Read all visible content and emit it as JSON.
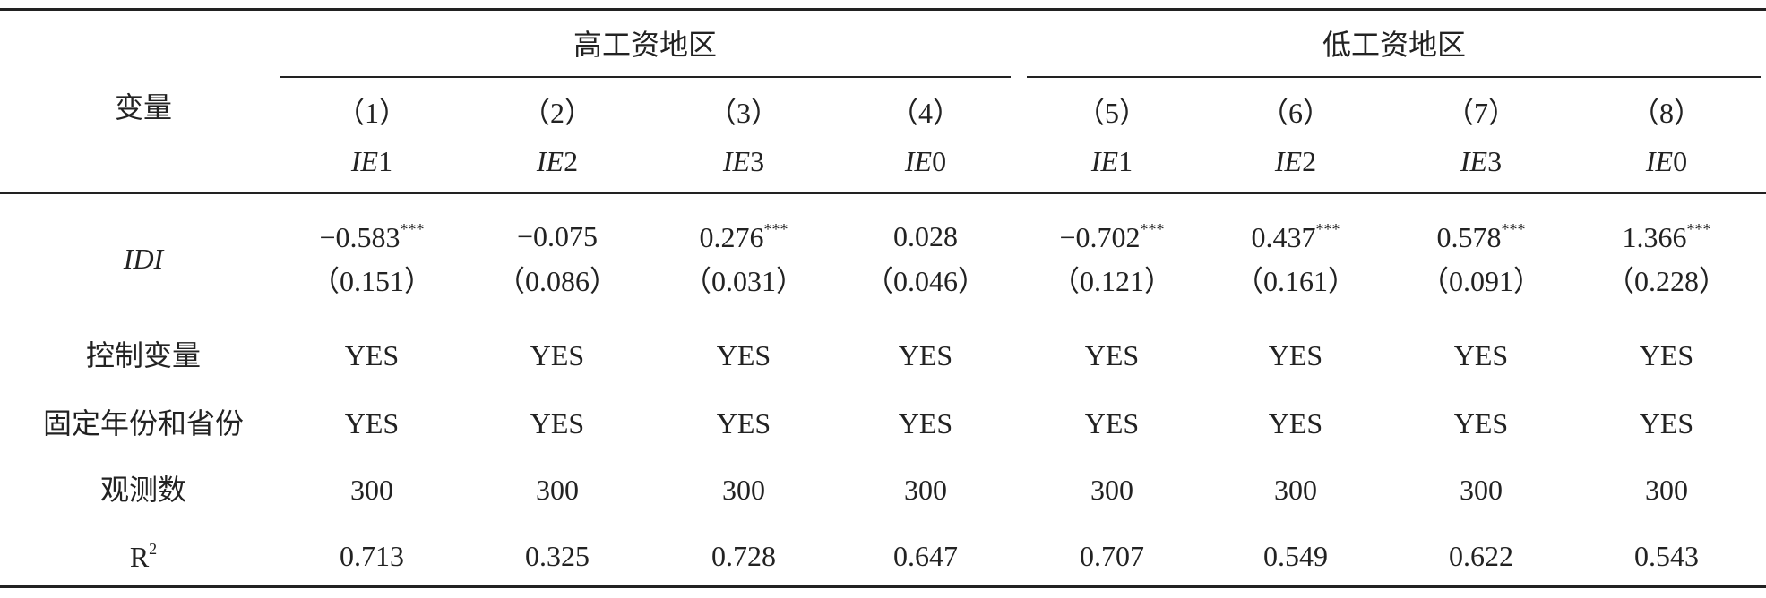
{
  "header": {
    "variable_label": "变量",
    "groups": [
      {
        "label": "高工资地区"
      },
      {
        "label": "低工资地区"
      }
    ],
    "columns": [
      {
        "number": "（1）",
        "var_name": "IE",
        "var_index": "1"
      },
      {
        "number": "（2）",
        "var_name": "IE",
        "var_index": "2"
      },
      {
        "number": "（3）",
        "var_name": "IE",
        "var_index": "3"
      },
      {
        "number": "（4）",
        "var_name": "IE",
        "var_index": "0"
      },
      {
        "number": "（5）",
        "var_name": "IE",
        "var_index": "1"
      },
      {
        "number": "（6）",
        "var_name": "IE",
        "var_index": "2"
      },
      {
        "number": "（7）",
        "var_name": "IE",
        "var_index": "3"
      },
      {
        "number": "（8）",
        "var_name": "IE",
        "var_index": "0"
      }
    ]
  },
  "coefficient_row": {
    "label": "IDI",
    "cells": [
      {
        "value": "−0.583",
        "stars": "***",
        "se": "（0.151）"
      },
      {
        "value": "−0.075",
        "se": "（0.086）"
      },
      {
        "value": "0.276",
        "stars": "***",
        "se": "（0.031）"
      },
      {
        "value": "0.028",
        "se": "（0.046）"
      },
      {
        "value": "−0.702",
        "stars": "***",
        "se": "（0.121）"
      },
      {
        "value": "0.437",
        "stars": "***",
        "se": "（0.161）"
      },
      {
        "value": "0.578",
        "stars": "***",
        "se": "（0.091）"
      },
      {
        "value": "1.366",
        "stars": "***",
        "se": "（0.228）"
      }
    ]
  },
  "rows": [
    {
      "label": "控制变量",
      "cells": [
        "YES",
        "YES",
        "YES",
        "YES",
        "YES",
        "YES",
        "YES",
        "YES"
      ]
    },
    {
      "label": "固定年份和省份",
      "cells": [
        "YES",
        "YES",
        "YES",
        "YES",
        "YES",
        "YES",
        "YES",
        "YES"
      ]
    },
    {
      "label": "观测数",
      "cells": [
        "300",
        "300",
        "300",
        "300",
        "300",
        "300",
        "300",
        "300"
      ]
    },
    {
      "label": "R",
      "label_sup": "2",
      "cells": [
        "0.713",
        "0.325",
        "0.728",
        "0.647",
        "0.707",
        "0.549",
        "0.622",
        "0.543"
      ]
    }
  ]
}
